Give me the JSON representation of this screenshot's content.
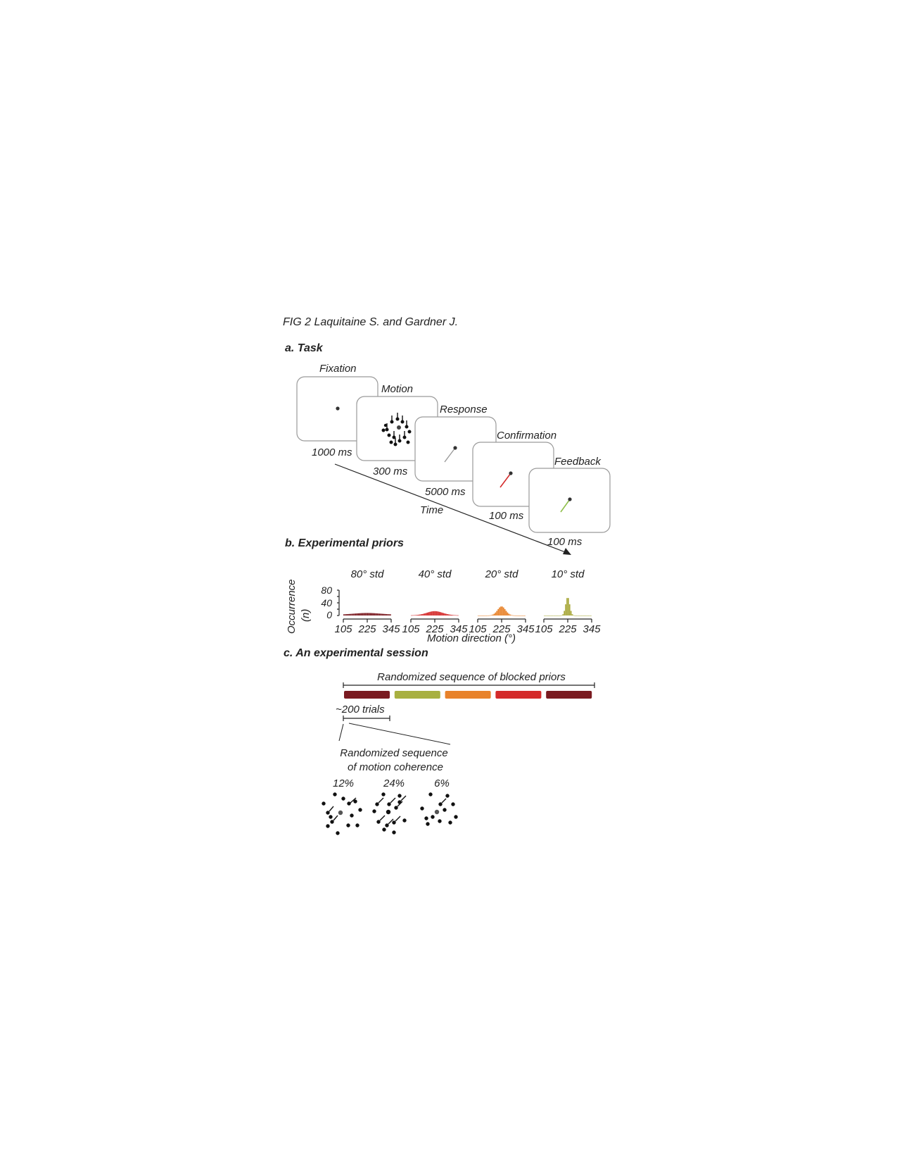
{
  "header": "FIG 2 Laquitaine S. and Gardner J.",
  "panel_a": {
    "title": "a. Task",
    "time_label": "Time",
    "screens": [
      {
        "name": "Fixation",
        "duration": "1000 ms"
      },
      {
        "name": "Motion",
        "duration": "300 ms"
      },
      {
        "name": "Response",
        "duration": "5000 ms"
      },
      {
        "name": "Confirmation",
        "duration": "100 ms"
      },
      {
        "name": "Feedback",
        "duration": "100 ms"
      }
    ],
    "colors": {
      "response": "#9a9a9a",
      "confirmation": "#d42a2a",
      "feedback": "#8fbf4a"
    }
  },
  "panel_b": {
    "title": "b. Experimental priors",
    "ylabel_line1": "Occurrence",
    "ylabel_line2": "(n)",
    "xlabel": "Motion direction (°)",
    "yticks": [
      "80",
      "40",
      "0"
    ],
    "xticks": [
      "105",
      "225",
      "345"
    ],
    "chart_data": {
      "type": "bar",
      "ylim": [
        0,
        80
      ],
      "xlim": [
        105,
        345
      ],
      "series": [
        {
          "name": "80° std",
          "std": 80,
          "color": "#7a1a20"
        },
        {
          "name": "40° std",
          "std": 40,
          "color": "#d42a2a"
        },
        {
          "name": "20° std",
          "std": 20,
          "color": "#e8822a"
        },
        {
          "name": "10° std",
          "std": 10,
          "color": "#a8a83a"
        }
      ]
    }
  },
  "panel_c": {
    "title": "c. An experimental session",
    "sequence_label": "Randomized sequence of blocked priors",
    "blocks": [
      {
        "color": "#7a1a20"
      },
      {
        "color": "#a8b040"
      },
      {
        "color": "#e8822a"
      },
      {
        "color": "#d42a2a"
      },
      {
        "color": "#7a1a20"
      }
    ],
    "trials_label": "~200 trials",
    "coherence_label_line1": "Randomized sequence",
    "coherence_label_line2": "of motion coherence",
    "coherences": [
      "12%",
      "24%",
      "6%"
    ]
  }
}
